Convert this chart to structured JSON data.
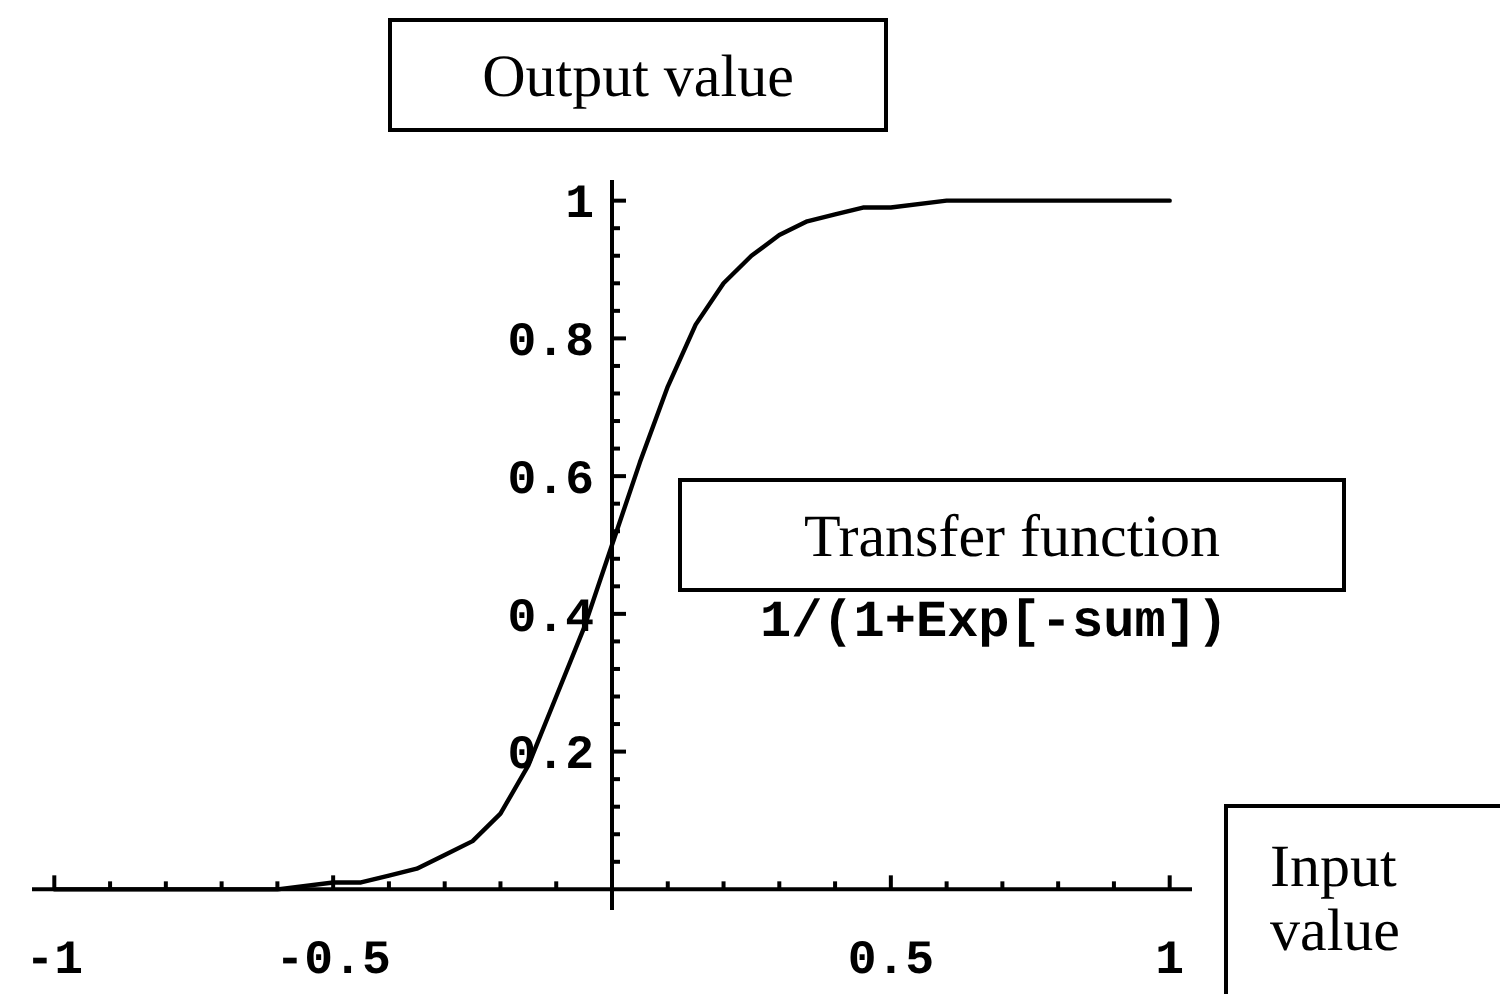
{
  "chart_data": {
    "type": "line",
    "xlabel": "Input value",
    "ylabel": "Output value",
    "annotations": [
      "Transfer function",
      "1/(1+Exp[-sum])"
    ],
    "x": [
      -1,
      -0.9,
      -0.8,
      -0.7,
      -0.6,
      -0.5,
      -0.45,
      -0.4,
      -0.35,
      -0.3,
      -0.25,
      -0.2,
      -0.15,
      -0.1,
      -0.05,
      0,
      0.05,
      0.1,
      0.15,
      0.2,
      0.25,
      0.3,
      0.35,
      0.4,
      0.45,
      0.5,
      0.6,
      0.7,
      0.8,
      0.9,
      1
    ],
    "series": [
      {
        "color": "#000000",
        "values": [
          0,
          0,
          0,
          0,
          0,
          0.01,
          0.01,
          0.02,
          0.03,
          0.05,
          0.07,
          0.11,
          0.18,
          0.28,
          0.38,
          0.5,
          0.62,
          0.73,
          0.82,
          0.88,
          0.92,
          0.95,
          0.97,
          0.98,
          0.99,
          0.99,
          1,
          1,
          1,
          1,
          1
        ]
      }
    ],
    "xlim": [
      -1.04,
      1.04
    ],
    "ylim": [
      -0.03,
      1.03
    ],
    "xticks": [
      -1,
      {
        "value": -0.9,
        "label": null
      },
      {
        "value": -0.8,
        "label": null
      },
      {
        "value": -0.7,
        "label": null
      },
      {
        "value": -0.6,
        "label": null
      },
      -0.5,
      {
        "value": -0.4,
        "label": null
      },
      {
        "value": -0.3,
        "label": null
      },
      {
        "value": -0.2,
        "label": null
      },
      {
        "value": -0.1,
        "label": null
      },
      {
        "value": 0.1,
        "label": null
      },
      {
        "value": 0.2,
        "label": null
      },
      {
        "value": 0.3,
        "label": null
      },
      {
        "value": 0.4,
        "label": null
      },
      0.5,
      {
        "value": 0.6,
        "label": null
      },
      {
        "value": 0.7,
        "label": null
      },
      {
        "value": 0.8,
        "label": null
      },
      {
        "value": 0.9,
        "label": null
      },
      1
    ],
    "yticks": [
      {
        "value": 0.04,
        "label": null
      },
      {
        "value": 0.08,
        "label": null
      },
      {
        "value": 0.12,
        "label": null
      },
      {
        "value": 0.16,
        "label": null
      },
      0.2,
      {
        "value": 0.24,
        "label": null
      },
      {
        "value": 0.28,
        "label": null
      },
      {
        "value": 0.32,
        "label": null
      },
      {
        "value": 0.36,
        "label": null
      },
      0.4,
      {
        "value": 0.44,
        "label": null
      },
      {
        "value": 0.48,
        "label": null
      },
      {
        "value": 0.52,
        "label": null
      },
      {
        "value": 0.56,
        "label": null
      },
      0.6,
      {
        "value": 0.64,
        "label": null
      },
      {
        "value": 0.68,
        "label": null
      },
      {
        "value": 0.72,
        "label": null
      },
      {
        "value": 0.76,
        "label": null
      },
      0.8,
      {
        "value": 0.84,
        "label": null
      },
      {
        "value": 0.88,
        "label": null
      },
      {
        "value": 0.92,
        "label": null
      },
      {
        "value": 0.96,
        "label": null
      },
      1
    ],
    "marker": "none"
  }
}
